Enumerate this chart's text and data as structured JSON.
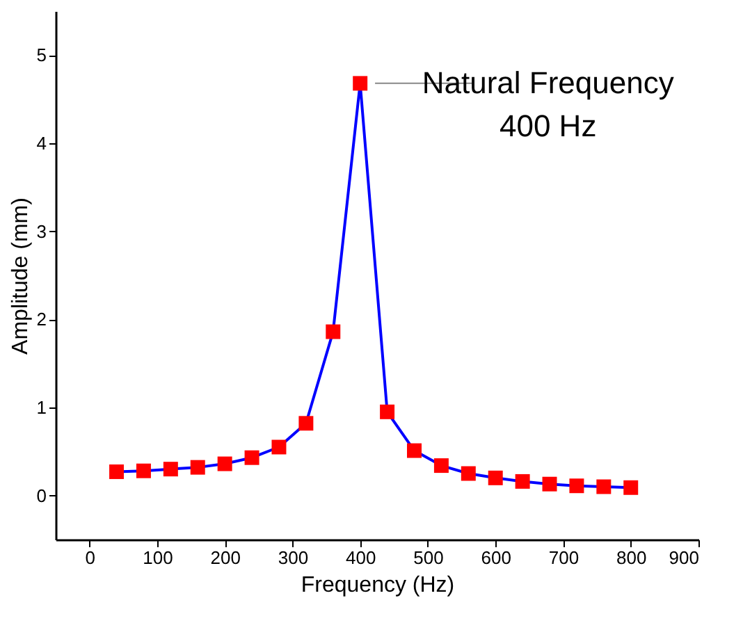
{
  "chart_data": {
    "type": "line",
    "xlabel": "Frequency (Hz)",
    "ylabel": "Amplitude (mm)",
    "x": [
      40,
      80,
      120,
      160,
      200,
      240,
      280,
      320,
      360,
      400,
      440,
      480,
      520,
      560,
      600,
      640,
      680,
      720,
      760,
      800
    ],
    "series": [
      {
        "color": "#0000ff",
        "colors": [
          "#ff0000",
          "#ff0000",
          "#ff0000",
          "#ff0000",
          "#ff0000",
          "#ff0000",
          "#ff0000",
          "#ff0000",
          "#ff0000",
          "#ff0000",
          "#ff0000",
          "#ff0000",
          "#ff0000",
          "#ff0000",
          "#ff0000",
          "#ff0000",
          "#ff0000",
          "#ff0000",
          "#ff0000",
          "#ff0000"
        ],
        "values": [
          0.27,
          0.28,
          0.3,
          0.32,
          0.36,
          0.43,
          0.55,
          0.82,
          1.86,
          4.68,
          0.95,
          0.51,
          0.34,
          0.25,
          0.2,
          0.16,
          0.13,
          0.11,
          0.1,
          0.09
        ]
      }
    ],
    "marker": "square",
    "line_style": "solid",
    "xlim": [
      -50,
      900
    ],
    "xticks": [
      0,
      100,
      200,
      300,
      400,
      500,
      600,
      700,
      800,
      900
    ],
    "ylim": [
      -0.5,
      5.5
    ],
    "yticks": [
      0,
      1,
      2,
      3,
      4,
      5
    ],
    "annotations": [
      {
        "text": "Natural Frequency\n400 Hz",
        "x": 400,
        "y": 4.68
      }
    ]
  }
}
